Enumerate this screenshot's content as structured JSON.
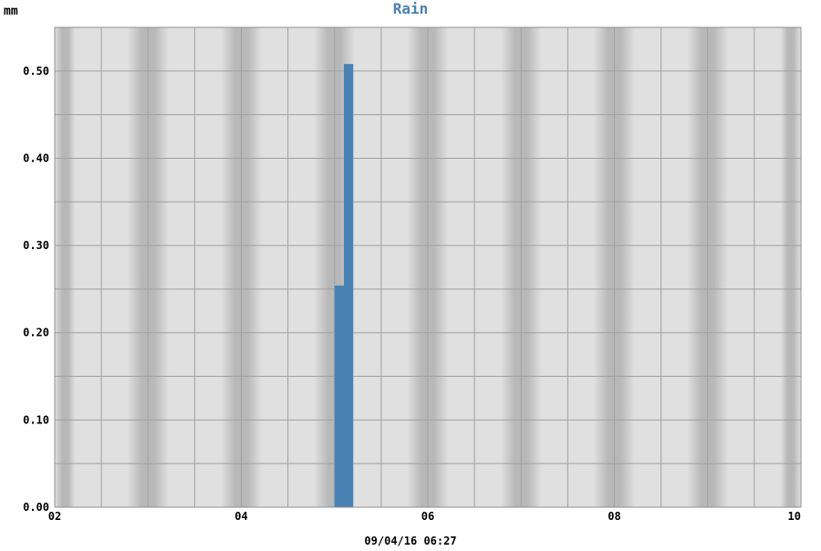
{
  "chart_data": {
    "type": "bar",
    "title": "Rain",
    "ylabel": "mm",
    "xlabel": "",
    "footer": "09/04/16 06:27",
    "x_domain": [
      2,
      10
    ],
    "ylim": [
      0,
      0.55
    ],
    "x_ticks": [
      2,
      4,
      6,
      8,
      10
    ],
    "x_tick_labels": [
      "02",
      "04",
      "06",
      "08",
      "10"
    ],
    "y_ticks": [
      0.0,
      0.1,
      0.2,
      0.3,
      0.4,
      0.5
    ],
    "y_tick_labels": [
      "0.00",
      "0.10",
      "0.20",
      "0.30",
      "0.40",
      "0.50"
    ],
    "grid": true,
    "legend": "none",
    "bar_width": 0.1,
    "bars": [
      {
        "x": 5.0,
        "value": 0.254
      },
      {
        "x": 5.1,
        "value": 0.508
      }
    ],
    "colors": {
      "bar": "#4682b4",
      "title": "#4682b4",
      "plot_background": "#e0e0e0",
      "night_band": "#b8b8b8",
      "grid": "#a0a0a0"
    }
  }
}
